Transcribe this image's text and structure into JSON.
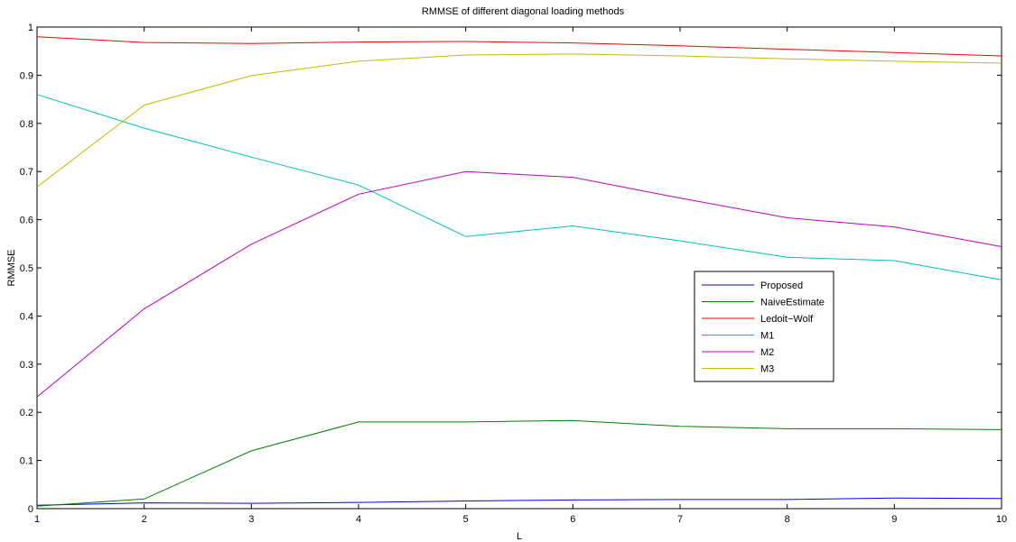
{
  "chart_data": {
    "type": "line",
    "title": "RMMSE of different diagonal loading methods",
    "xlabel": "L",
    "ylabel": "RMMSE",
    "x": [
      1,
      2,
      3,
      4,
      5,
      6,
      7,
      8,
      9,
      10
    ],
    "xlim": [
      1,
      10
    ],
    "ylim": [
      0,
      1
    ],
    "xticks": [
      "1",
      "2",
      "3",
      "4",
      "5",
      "6",
      "7",
      "8",
      "9",
      "10"
    ],
    "yticks": [
      "0",
      "0.1",
      "0.2",
      "0.3",
      "0.4",
      "0.5",
      "0.6",
      "0.7",
      "0.8",
      "0.9",
      "1"
    ],
    "grid": false,
    "legend_position": "center-right",
    "series": [
      {
        "name": "Proposed",
        "color": "#0000ff",
        "values": [
          0.007,
          0.012,
          0.011,
          0.013,
          0.016,
          0.018,
          0.019,
          0.019,
          0.022,
          0.021
        ]
      },
      {
        "name": "NaiveEstimate",
        "color": "#008000",
        "values": [
          0.005,
          0.02,
          0.12,
          0.18,
          0.18,
          0.183,
          0.171,
          0.166,
          0.166,
          0.164
        ]
      },
      {
        "name": "Ledoit−Wolf",
        "color": "#ff0000",
        "values": [
          0.98,
          0.968,
          0.966,
          0.969,
          0.97,
          0.967,
          0.961,
          0.954,
          0.947,
          0.94
        ]
      },
      {
        "name": "M1",
        "color": "#00bfbf",
        "values": [
          0.86,
          0.79,
          0.73,
          0.672,
          0.565,
          0.587,
          0.556,
          0.522,
          0.515,
          0.475
        ]
      },
      {
        "name": "M2",
        "color": "#bf00bf",
        "values": [
          0.232,
          0.415,
          0.549,
          0.653,
          0.7,
          0.688,
          0.645,
          0.604,
          0.585,
          0.544
        ]
      },
      {
        "name": "M3",
        "color": "#bfbf00",
        "values": [
          0.668,
          0.838,
          0.899,
          0.929,
          0.942,
          0.944,
          0.94,
          0.934,
          0.929,
          0.925
        ]
      }
    ]
  }
}
